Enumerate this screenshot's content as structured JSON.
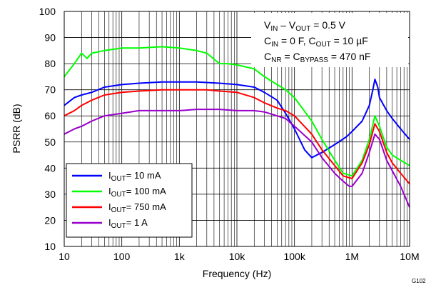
{
  "figure_id": "G102",
  "chart_data": {
    "type": "line",
    "xlabel": "Frequency (Hz)",
    "ylabel": "PSRR (dB)",
    "xscale": "log",
    "xlim": [
      10,
      10000000
    ],
    "ylim": [
      10,
      100
    ],
    "grid": true,
    "legend_placement": "bottom-left",
    "x_tick_labels": [
      "10",
      "100",
      "1k",
      "10k",
      "100k",
      "1M",
      "10M"
    ],
    "y_tick_labels": [
      "10",
      "20",
      "30",
      "40",
      "50",
      "60",
      "70",
      "80",
      "90",
      "100"
    ],
    "annotation_lines": [
      {
        "parts": [
          {
            "t": "V"
          },
          {
            "t": "IN",
            "sub": true
          },
          {
            "t": " – V"
          },
          {
            "t": "OUT",
            "sub": true
          },
          {
            "t": " = 0.5 V"
          }
        ]
      },
      {
        "parts": [
          {
            "t": "C"
          },
          {
            "t": "IN",
            "sub": true
          },
          {
            "t": " = 0 F, C"
          },
          {
            "t": "OUT",
            "sub": true
          },
          {
            "t": " = 10 µF"
          }
        ]
      },
      {
        "parts": [
          {
            "t": "C"
          },
          {
            "t": "NR",
            "sub": true
          },
          {
            "t": " = C"
          },
          {
            "t": "BYPASS",
            "sub": true
          },
          {
            "t": " = 470 nF"
          }
        ]
      }
    ],
    "series": [
      {
        "name": "IOUT= 10 mA",
        "label_parts": [
          {
            "t": "I"
          },
          {
            "t": "OUT",
            "sub": true
          },
          {
            "t": "= 10 mA"
          }
        ],
        "color": "#0000ff",
        "x": [
          10,
          15,
          20,
          30,
          50,
          100,
          200,
          500,
          1000,
          2000,
          5000,
          10000,
          20000,
          30000,
          50000,
          70000,
          100000,
          150000,
          200000,
          300000,
          500000,
          800000,
          1000000,
          1500000,
          2000000,
          2300000,
          2500000,
          2800000,
          3000000,
          4000000,
          5000000,
          7000000,
          10000000
        ],
        "y": [
          64,
          67,
          68,
          69,
          71,
          72,
          72.5,
          73,
          73,
          73,
          72.5,
          72,
          71,
          69,
          66,
          61,
          55,
          47,
          44,
          46,
          49,
          52,
          54,
          58,
          64,
          70,
          74,
          71,
          67,
          62,
          59,
          55,
          51
        ]
      },
      {
        "name": "IOUT= 100 mA",
        "label_parts": [
          {
            "t": "I"
          },
          {
            "t": "OUT",
            "sub": true
          },
          {
            "t": "= 100 mA"
          }
        ],
        "color": "#00ff00",
        "x": [
          10,
          15,
          20,
          25,
          30,
          50,
          100,
          200,
          500,
          1000,
          2000,
          3000,
          5000,
          7000,
          10000,
          20000,
          30000,
          50000,
          70000,
          100000,
          200000,
          300000,
          500000,
          700000,
          1000000,
          1500000,
          2000000,
          2500000,
          3000000,
          4000000,
          5000000,
          7000000,
          10000000
        ],
        "y": [
          75,
          80,
          84,
          82,
          84,
          85,
          86,
          86,
          86.5,
          86,
          85,
          84,
          80,
          80,
          79.5,
          78,
          75,
          72,
          70,
          67,
          58,
          51,
          43,
          38,
          37,
          43,
          51,
          60,
          56,
          48,
          45,
          43,
          41
        ]
      },
      {
        "name": "IOUT= 750 mA",
        "label_parts": [
          {
            "t": "I"
          },
          {
            "t": "OUT",
            "sub": true
          },
          {
            "t": "= 750 mA"
          }
        ],
        "color": "#ff0000",
        "x": [
          10,
          15,
          20,
          30,
          50,
          100,
          200,
          500,
          1000,
          2000,
          3000,
          5000,
          10000,
          20000,
          30000,
          50000,
          70000,
          100000,
          200000,
          300000,
          500000,
          700000,
          1000000,
          1500000,
          2000000,
          2500000,
          3000000,
          4000000,
          5000000,
          7000000,
          10000000
        ],
        "y": [
          60,
          62,
          64,
          66,
          68,
          69,
          69.5,
          70,
          70,
          70,
          70,
          69.5,
          69,
          67,
          65,
          63,
          62,
          60,
          53,
          47,
          41,
          37,
          36,
          42,
          49,
          57,
          54,
          46,
          42,
          38,
          34
        ]
      },
      {
        "name": "IOUT= 1 A",
        "label_parts": [
          {
            "t": "I"
          },
          {
            "t": "OUT",
            "sub": true
          },
          {
            "t": "= 1 A"
          }
        ],
        "color": "#9900cc",
        "x": [
          10,
          15,
          20,
          30,
          50,
          100,
          200,
          500,
          1000,
          2000,
          3000,
          5000,
          10000,
          20000,
          30000,
          50000,
          70000,
          100000,
          200000,
          300000,
          500000,
          700000,
          900000,
          1000000,
          1500000,
          2000000,
          2500000,
          3000000,
          4000000,
          5000000,
          7000000,
          10000000
        ],
        "y": [
          53,
          55,
          56,
          58,
          60,
          61,
          62,
          62,
          62,
          62.5,
          62.5,
          62.5,
          62,
          62,
          61.5,
          60,
          59,
          56,
          50,
          44,
          38,
          35,
          33,
          33,
          38,
          46,
          53,
          51,
          43,
          39,
          33,
          25
        ]
      }
    ]
  }
}
